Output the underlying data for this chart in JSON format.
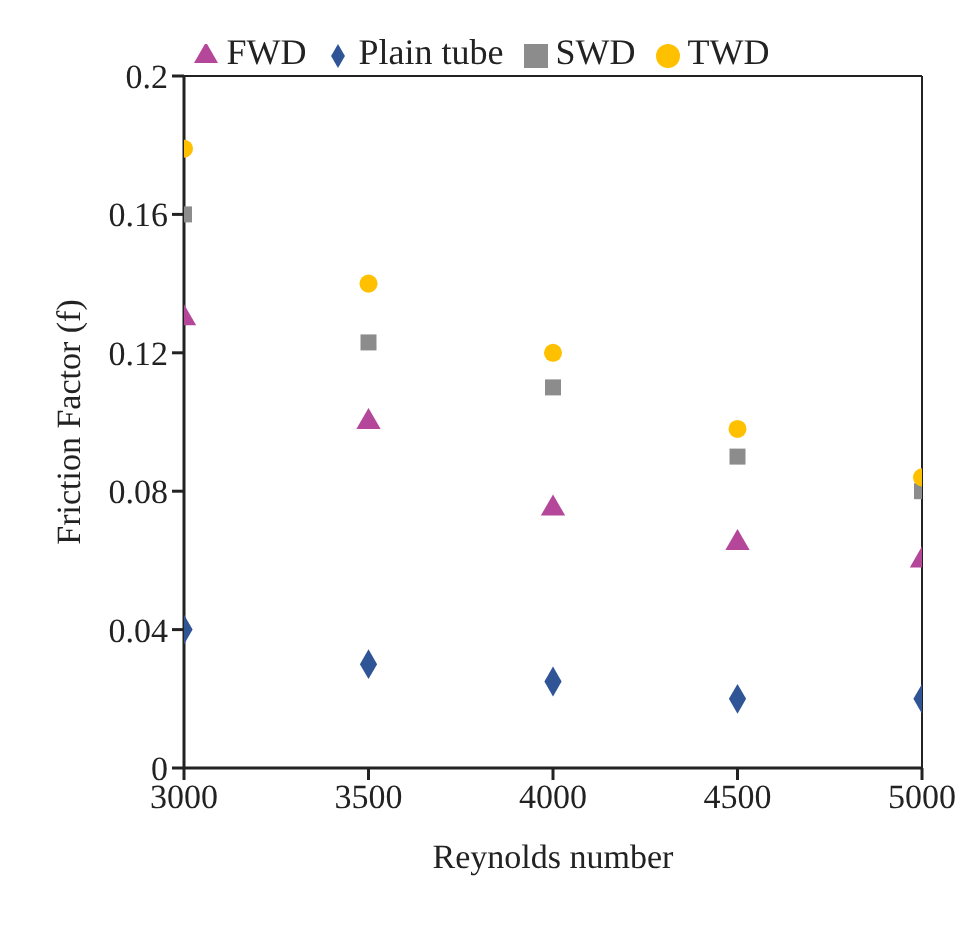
{
  "chart_data": {
    "type": "scatter",
    "xlabel": "Reynolds number",
    "ylabel": "Friction Factor (f)",
    "x": [
      3000,
      3500,
      4000,
      4500,
      5000
    ],
    "series": [
      {
        "name": "Plain tube",
        "color": "#2f5597",
        "marker": "diamond",
        "values": [
          0.04,
          0.03,
          0.025,
          0.02,
          0.02
        ]
      },
      {
        "name": "FWD",
        "color": "#b4479a",
        "marker": "triangle",
        "values": [
          0.13,
          0.1,
          0.075,
          0.065,
          0.06
        ]
      },
      {
        "name": "SWD",
        "color": "#8c8c8c",
        "marker": "square",
        "values": [
          0.16,
          0.123,
          0.11,
          0.09,
          0.08
        ]
      },
      {
        "name": "TWD",
        "color": "#ffc000",
        "marker": "circle",
        "values": [
          0.179,
          0.14,
          0.12,
          0.098,
          0.084
        ]
      }
    ],
    "xlim": [
      3000,
      5000
    ],
    "xticks": [
      3000,
      3500,
      4000,
      4500,
      5000
    ],
    "ylim": [
      0,
      0.2
    ],
    "yticks": [
      0,
      0.04,
      0.08,
      0.12,
      0.16,
      0.2
    ],
    "grid": false,
    "legend": "top"
  }
}
